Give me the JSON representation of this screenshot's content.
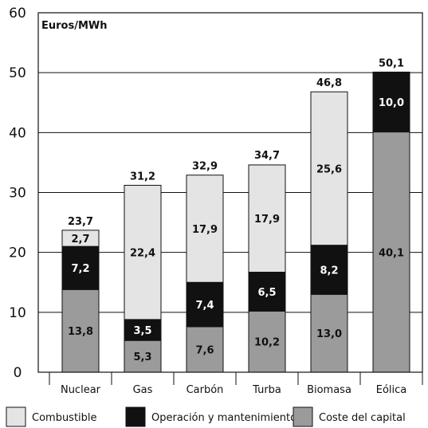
{
  "chart_data": {
    "type": "bar",
    "stacked": true,
    "unit_label": "Euros/MWh",
    "categories": [
      "Nuclear",
      "Gas",
      "Carbón",
      "Turba",
      "Biomasa",
      "Eólica"
    ],
    "series": [
      {
        "name": "Coste del capital",
        "color": "#9b9b9b",
        "label_color": "#111111",
        "values": [
          13.8,
          5.3,
          7.6,
          10.2,
          13.0,
          40.1
        ],
        "labels": [
          "13,8",
          "5,3",
          "7,6",
          "10,2",
          "13,0",
          "40,1"
        ]
      },
      {
        "name": "Operación y mantenimiento",
        "color": "#111111",
        "label_color": "#ffffff",
        "values": [
          7.2,
          3.5,
          7.4,
          6.5,
          8.2,
          10.0
        ],
        "labels": [
          "7,2",
          "3,5",
          "7,4",
          "6,5",
          "8,2",
          "10,0"
        ]
      },
      {
        "name": "Combustible",
        "color": "#e4e4e4",
        "label_color": "#111111",
        "values": [
          2.7,
          22.4,
          17.9,
          17.9,
          25.6,
          0
        ],
        "labels": [
          "2,7",
          "22,4",
          "17,9",
          "17,9",
          "25,6",
          ""
        ]
      }
    ],
    "totals": [
      "23,7",
      "31,2",
      "32,9",
      "34,7",
      "46,8",
      "50,1"
    ],
    "total_values": [
      23.7,
      31.2,
      32.9,
      34.7,
      46.8,
      50.1
    ],
    "ylim": [
      0,
      60
    ],
    "yticks": [
      0,
      10,
      20,
      30,
      40,
      50,
      60
    ],
    "grid": true,
    "legend_position": "bottom",
    "legend_order": [
      "Combustible",
      "Operación y mantenimiento",
      "Coste del capital"
    ]
  }
}
